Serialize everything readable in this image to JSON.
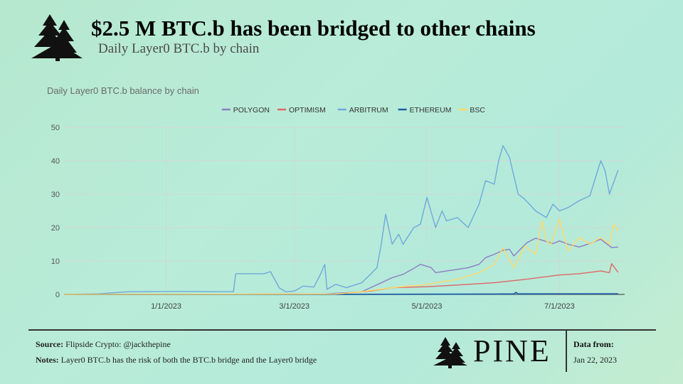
{
  "header": {
    "title": "$2.5 M BTC.b has been bridged to other chains",
    "subtitle": "Daily Layer0 BTC.b by chain"
  },
  "footer": {
    "source_label": "Source:",
    "source_text": "Flipside Crypto: @jackthepine",
    "notes_label": "Notes:",
    "notes_text": "Layer0 BTC.b has the risk of both the BTC.b bridge and the Layer0 bridge",
    "brand": "PINE",
    "data_from_label": "Data from:",
    "data_from_date": "Jan 22, 2023"
  },
  "chart_data": {
    "type": "line",
    "title": "Daily Layer0 BTC.b balance by chain",
    "xlabel": "",
    "ylabel": "",
    "ylim": [
      0,
      50
    ],
    "yticks": [
      0,
      10,
      20,
      30,
      40,
      50
    ],
    "xlim": [
      "2022-11-15",
      "2023-07-31"
    ],
    "xticks": [
      "1/1/2023",
      "3/1/2023",
      "5/1/2023",
      "7/1/2023"
    ],
    "grid": true,
    "legend": "top",
    "series": [
      {
        "name": "POLYGON",
        "color": "#8e7cc3",
        "x": [
          "2022-11-15",
          "2023-03-15",
          "2023-04-01",
          "2023-04-05",
          "2023-04-10",
          "2023-04-15",
          "2023-04-20",
          "2023-04-25",
          "2023-04-28",
          "2023-05-03",
          "2023-05-05",
          "2023-05-10",
          "2023-05-15",
          "2023-05-20",
          "2023-05-25",
          "2023-05-28",
          "2023-06-01",
          "2023-06-05",
          "2023-06-08",
          "2023-06-10",
          "2023-06-13",
          "2023-06-16",
          "2023-06-20",
          "2023-06-25",
          "2023-06-28",
          "2023-07-01",
          "2023-07-05",
          "2023-07-10",
          "2023-07-15",
          "2023-07-20",
          "2023-07-25",
          "2023-07-28"
        ],
        "values": [
          0,
          0.1,
          0.8,
          2,
          3.5,
          5,
          6,
          7.8,
          9,
          8,
          6.5,
          7,
          7.5,
          8,
          9,
          11,
          12,
          13.2,
          13.5,
          11.5,
          13.5,
          15.5,
          16.8,
          15.8,
          15.2,
          16,
          15,
          14.2,
          15.2,
          16.5,
          14,
          14.2
        ]
      },
      {
        "name": "OPTIMISM",
        "color": "#e06666",
        "x": [
          "2022-11-15",
          "2023-03-20",
          "2023-04-05",
          "2023-04-15",
          "2023-05-01",
          "2023-05-15",
          "2023-06-01",
          "2023-06-15",
          "2023-07-01",
          "2023-07-10",
          "2023-07-20",
          "2023-07-24",
          "2023-07-25",
          "2023-07-28"
        ],
        "values": [
          0,
          0.1,
          1,
          2,
          2.3,
          2.8,
          3.5,
          4.5,
          5.8,
          6.2,
          7,
          6.5,
          9.2,
          6.6
        ]
      },
      {
        "name": "ARBITRUM",
        "color": "#6fa8dc",
        "x": [
          "2022-11-15",
          "2022-12-01",
          "2022-12-15",
          "2023-01-10",
          "2023-01-25",
          "2023-02-01",
          "2023-02-02",
          "2023-02-15",
          "2023-02-18",
          "2023-02-22",
          "2023-02-25",
          "2023-03-01",
          "2023-03-05",
          "2023-03-10",
          "2023-03-13",
          "2023-03-15",
          "2023-03-16",
          "2023-03-20",
          "2023-03-25",
          "2023-04-01",
          "2023-04-05",
          "2023-04-08",
          "2023-04-10",
          "2023-04-12",
          "2023-04-15",
          "2023-04-18",
          "2023-04-20",
          "2023-04-25",
          "2023-04-28",
          "2023-05-01",
          "2023-05-05",
          "2023-05-08",
          "2023-05-10",
          "2023-05-15",
          "2023-05-20",
          "2023-05-25",
          "2023-05-28",
          "2023-06-01",
          "2023-06-03",
          "2023-06-05",
          "2023-06-08",
          "2023-06-12",
          "2023-06-15",
          "2023-06-20",
          "2023-06-25",
          "2023-06-28",
          "2023-07-01",
          "2023-07-05",
          "2023-07-10",
          "2023-07-15",
          "2023-07-20",
          "2023-07-22",
          "2023-07-24",
          "2023-07-28"
        ],
        "values": [
          0,
          0.2,
          0.8,
          0.9,
          0.8,
          0.8,
          6.2,
          6.2,
          6.8,
          2,
          0.8,
          1,
          2.5,
          2.2,
          6,
          9,
          1.5,
          3,
          2,
          3.5,
          6,
          8,
          15,
          24,
          15,
          18,
          15,
          20,
          21,
          29,
          20,
          25,
          22,
          23,
          20,
          27,
          34,
          33,
          40,
          44.5,
          41,
          30,
          28.5,
          25,
          23,
          27,
          25,
          26,
          28,
          29.5,
          40,
          37,
          30,
          37.2
        ]
      },
      {
        "name": "ETHEREUM",
        "color": "#1f5fa6",
        "x": [
          "2022-11-15",
          "2023-03-15",
          "2023-06-01",
          "2023-06-10",
          "2023-06-11",
          "2023-06-12",
          "2023-07-28"
        ],
        "values": [
          0,
          0,
          0.1,
          0.15,
          0.6,
          0.15,
          0.2
        ]
      },
      {
        "name": "BSC",
        "color": "#ffd966",
        "x": [
          "2022-11-15",
          "2023-03-20",
          "2023-04-01",
          "2023-04-15",
          "2023-05-01",
          "2023-05-15",
          "2023-05-25",
          "2023-06-01",
          "2023-06-05",
          "2023-06-10",
          "2023-06-15",
          "2023-06-20",
          "2023-06-23",
          "2023-06-25",
          "2023-06-27",
          "2023-07-01",
          "2023-07-05",
          "2023-07-10",
          "2023-07-15",
          "2023-07-20",
          "2023-07-24",
          "2023-07-26",
          "2023-07-28"
        ],
        "values": [
          0,
          0.1,
          0.8,
          2,
          3,
          4.5,
          6.5,
          9,
          14,
          8,
          14.5,
          12,
          22,
          16,
          15,
          22.5,
          13,
          17,
          15,
          17,
          15,
          21,
          19
        ]
      }
    ]
  }
}
